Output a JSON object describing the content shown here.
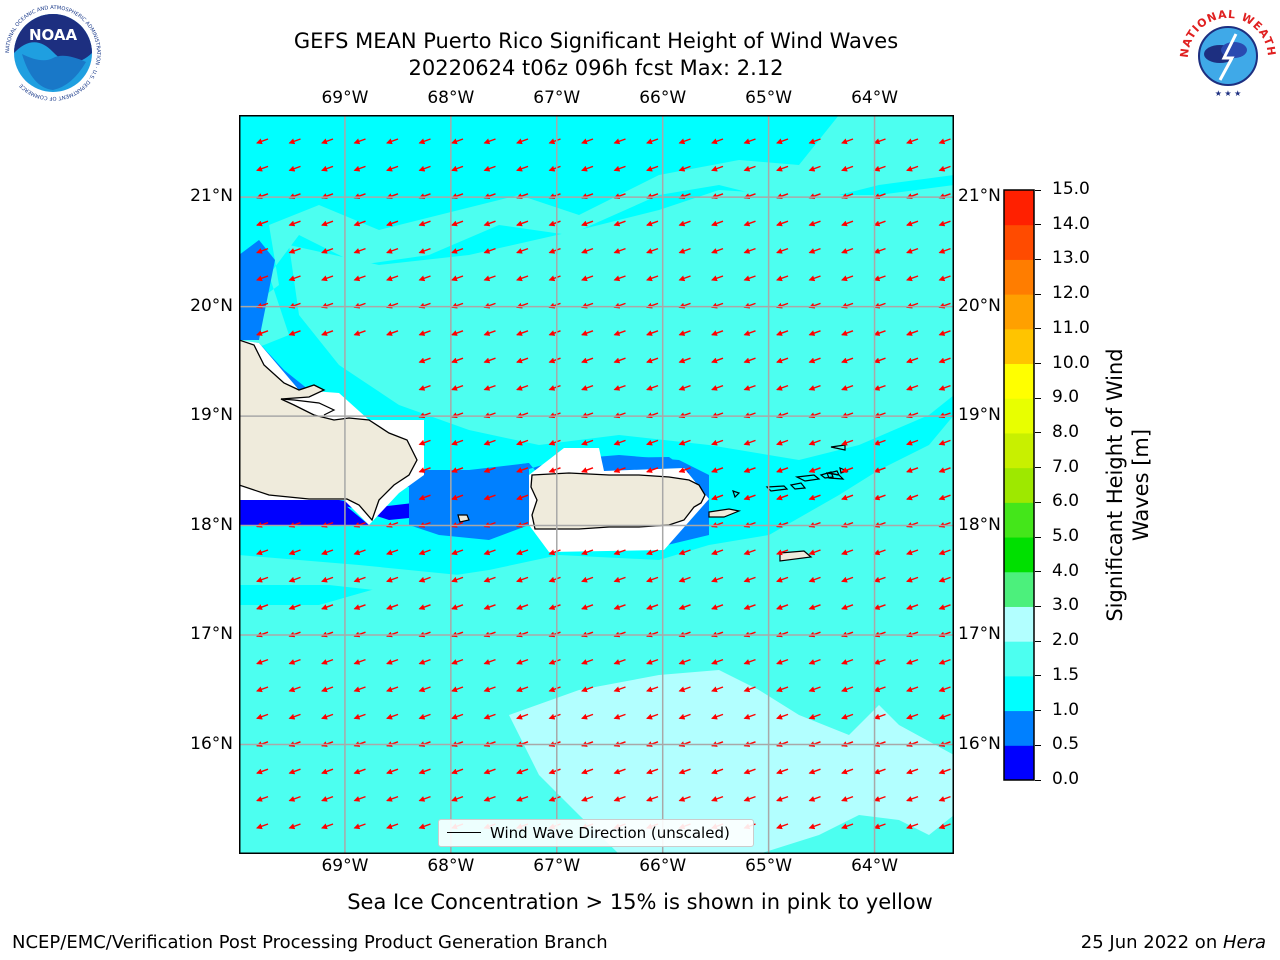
{
  "title": {
    "line1": "GEFS MEAN Puerto Rico Significant Height of Wind Waves",
    "line2": "20220624 t06z 096h fcst   Max: 2.12"
  },
  "map": {
    "lon_ticks": [
      "69°W",
      "68°W",
      "67°W",
      "66°W",
      "65°W",
      "64°W"
    ],
    "lat_ticks": [
      "21°N",
      "20°N",
      "19°N",
      "18°N",
      "17°N",
      "16°N"
    ],
    "lon_range": [
      -70.0,
      -63.25
    ],
    "lat_range": [
      15.0,
      21.75
    ],
    "grid": true,
    "vector_field": "Wind Wave Direction (unscaled)",
    "vector_direction": "toward west-southwest",
    "vector_color": "#ff0000",
    "land_color": "#efebdc",
    "ocean_color": "#00ffff"
  },
  "legend": {
    "label": "Wind Wave Direction (unscaled)",
    "placement": "bottom-center"
  },
  "colorbar": {
    "label": "Significant Height of Wind Waves [m]",
    "ticks": [
      "0.0",
      "0.5",
      "1.0",
      "1.5",
      "2.0",
      "3.0",
      "4.0",
      "5.0",
      "6.0",
      "7.0",
      "8.0",
      "9.0",
      "10.0",
      "11.0",
      "12.0",
      "13.0",
      "14.0",
      "15.0"
    ],
    "colors": [
      "#0000ff",
      "#0080ff",
      "#00ffff",
      "#4cfff0",
      "#b2ffff",
      "#4cf07c",
      "#00e000",
      "#44e61a",
      "#9ee800",
      "#c8f000",
      "#e8ff00",
      "#ffff00",
      "#ffc400",
      "#ffa000",
      "#ff7d00",
      "#ff4b00",
      "#ff2000",
      "#ff0000"
    ]
  },
  "note": "Sea Ice Concentration > 15% is shown in pink to yellow",
  "footer": {
    "left": "NCEP/EMC/Verification Post Processing Product Generation Branch",
    "right_prefix": "25 Jun 2022 on ",
    "right_host": "Hera"
  },
  "logos": {
    "noaa": "NOAA",
    "noaa_ring": "NATIONAL OCEANIC AND ATMOSPHERIC ADMINISTRATION · U.S. DEPARTMENT OF COMMERCE",
    "nws_ring": "NATIONAL WEATHER SERVICE"
  }
}
